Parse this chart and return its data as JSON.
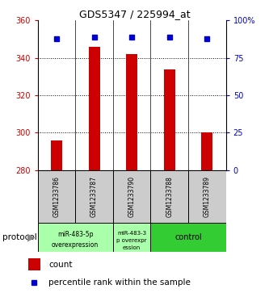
{
  "title": "GDS5347 / 225994_at",
  "samples": [
    "GSM1233786",
    "GSM1233787",
    "GSM1233790",
    "GSM1233788",
    "GSM1233789"
  ],
  "bar_values": [
    296,
    346,
    342,
    334,
    300
  ],
  "percentile_values": [
    88,
    89,
    89,
    89,
    88
  ],
  "bar_color": "#cc0000",
  "dot_color": "#0000cc",
  "ylim_left": [
    280,
    360
  ],
  "ylim_right": [
    0,
    100
  ],
  "yticks_left": [
    280,
    300,
    320,
    340,
    360
  ],
  "yticks_right": [
    0,
    25,
    50,
    75,
    100
  ],
  "ytick_labels_right": [
    "0",
    "25",
    "50",
    "75",
    "100%"
  ],
  "grid_ticks": [
    300,
    320,
    340
  ],
  "bar_bottom": 280,
  "bar_width": 0.3,
  "background_color": "#ffffff",
  "legend_items": [
    "count",
    "percentile rank within the sample"
  ],
  "ylabel_left_color": "#cc0000",
  "ylabel_right_color": "#0000cc",
  "proto_group1_label1": "miR-483-5p",
  "proto_group1_label2": "overexpression",
  "proto_group2_label1": "miR-483-3",
  "proto_group2_label2": "p overexpr",
  "proto_group2_label3": "ession",
  "proto_group3_label": "control",
  "proto_light_green": "#aaffaa",
  "proto_dark_green": "#33cc33",
  "gray_bg": "#cccccc"
}
